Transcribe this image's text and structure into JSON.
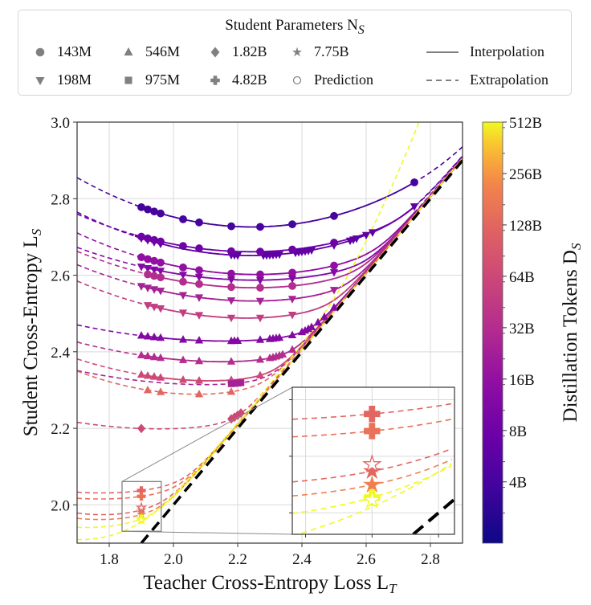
{
  "legend": {
    "title": "Student Parameters N",
    "title_sub": "S",
    "items": [
      {
        "label": "143M",
        "marker": "circle"
      },
      {
        "label": "546M",
        "marker": "triangle-up"
      },
      {
        "label": "1.82B",
        "marker": "diamond"
      },
      {
        "label": "7.75B",
        "marker": "star"
      },
      {
        "label": "Interpolation",
        "marker": "solid-line"
      },
      {
        "label": "198M",
        "marker": "triangle-down"
      },
      {
        "label": "975M",
        "marker": "square"
      },
      {
        "label": "4.82B",
        "marker": "plus"
      },
      {
        "label": "Prediction",
        "marker": "hollow-circle"
      },
      {
        "label": "Extrapolation",
        "marker": "dashed-line"
      }
    ]
  },
  "colors": {
    "legend_marker": "#808080",
    "grid": "#d9d9d9",
    "diagonal": "#000000"
  },
  "chart_data": {
    "type": "line",
    "xlabel": "Teacher Cross-Entropy Loss L",
    "xlabel_sub": "T",
    "ylabel": "Student Cross-Entropy L",
    "ylabel_sub": "S",
    "xlim": [
      1.7,
      2.9
    ],
    "ylim": [
      1.9,
      3.0
    ],
    "xticks": [
      "1.8",
      "2.0",
      "2.2",
      "2.4",
      "2.6",
      "2.8"
    ],
    "xtick_values": [
      1.8,
      2.0,
      2.2,
      2.4,
      2.6,
      2.8
    ],
    "yticks": [
      "2.0",
      "2.2",
      "2.4",
      "2.6",
      "2.8",
      "3.0"
    ],
    "ytick_values": [
      2.0,
      2.2,
      2.4,
      2.6,
      2.8,
      3.0
    ],
    "grid": true,
    "diagonal": "y = x (black dashed)",
    "colorbar": {
      "label": "Distillation Tokens D",
      "label_sub": "S",
      "scale": "log2",
      "colormap": "plasma",
      "range_B": [
        1.75,
        512
      ],
      "ticks": [
        "4B",
        "8B",
        "16B",
        "32B",
        "64B",
        "128B",
        "256B",
        "512B"
      ],
      "tick_values_B": [
        4,
        8,
        16,
        32,
        64,
        128,
        256,
        512
      ]
    },
    "inset": {
      "xlim": [
        1.84,
        1.962
      ],
      "ylim": [
        1.931,
        2.061
      ],
      "grid_x": [
        1.85,
        1.9,
        1.95
      ],
      "grid_y": [
        1.95,
        2.0,
        2.05
      ]
    },
    "series": [
      {
        "student": "143M",
        "tokens_B": 4,
        "fit": {
          "x0": 2.25,
          "ymin": 2.73,
          "curv": 0.43
        },
        "interp": [
          1.88,
          2.75
        ],
        "marker": "circle",
        "x": [
          1.9,
          1.92,
          1.94,
          1.96,
          2.03,
          2.08,
          2.18,
          2.27,
          2.37,
          2.5,
          2.75
        ]
      },
      {
        "student": "198M",
        "tokens_B": 6,
        "fit": {
          "x0": 2.25,
          "ymin": 2.655,
          "curv": 0.38
        },
        "interp": [
          1.88,
          2.75
        ],
        "marker": "triangle-down",
        "x": [
          1.9,
          1.92,
          1.94,
          1.96,
          2.18,
          2.19,
          2.2,
          2.28,
          2.29,
          2.3,
          2.31,
          2.32,
          2.33,
          2.38,
          2.39,
          2.4,
          2.41,
          2.42,
          2.43,
          2.5,
          2.55,
          2.56,
          2.57,
          2.6,
          2.62,
          2.75
        ]
      },
      {
        "student": "143M",
        "tokens_B": 8,
        "fit": {
          "x0": 2.25,
          "ymin": 2.665,
          "curv": 0.33
        },
        "interp": [
          1.88,
          2.75
        ],
        "marker": "circle",
        "x": [
          1.9,
          1.92,
          1.94,
          1.96,
          2.03,
          2.08,
          2.18,
          2.27,
          2.37,
          2.5
        ]
      },
      {
        "student": "143M",
        "tokens_B": 16,
        "fit": {
          "x0": 2.27,
          "ymin": 2.605,
          "curv": 0.34
        },
        "interp": [
          1.9,
          2.75
        ],
        "marker": "circle",
        "x": [
          1.9,
          1.92,
          1.94,
          1.96,
          2.03,
          2.08,
          2.18,
          2.27,
          2.37,
          2.5
        ]
      },
      {
        "student": "198M",
        "tokens_B": 12,
        "fit": {
          "x0": 2.27,
          "ymin": 2.59,
          "curv": 0.27
        },
        "interp": [
          1.9,
          2.75
        ],
        "marker": "triangle-down",
        "x": [
          1.9,
          1.92,
          1.94,
          1.96,
          2.03,
          2.08,
          2.18,
          2.27,
          2.37,
          2.5
        ]
      },
      {
        "student": "143M",
        "tokens_B": 32,
        "fit": {
          "x0": 2.27,
          "ymin": 2.57,
          "curv": 0.3
        },
        "interp": [
          1.92,
          2.75
        ],
        "marker": "circle",
        "x": [
          1.92,
          1.94,
          1.96,
          2.03,
          2.08,
          2.18,
          2.27,
          2.37
        ]
      },
      {
        "student": "198M",
        "tokens_B": 24,
        "fit": {
          "x0": 2.27,
          "ymin": 2.535,
          "curv": 0.3
        },
        "interp": [
          1.9,
          2.75
        ],
        "marker": "triangle-down",
        "x": [
          1.9,
          1.92,
          1.94,
          1.96,
          2.03,
          2.08,
          2.18,
          2.27,
          2.37,
          2.5
        ]
      },
      {
        "student": "198M",
        "tokens_B": 48,
        "fit": {
          "x0": 2.25,
          "ymin": 2.49,
          "curv": 0.33
        },
        "interp": [
          1.92,
          2.75
        ],
        "marker": "triangle-down",
        "x": [
          1.92,
          1.94,
          1.96,
          2.03,
          2.08,
          2.18,
          2.27,
          2.37
        ]
      },
      {
        "student": "546M",
        "tokens_B": 12,
        "fit": {
          "x0": 2.2,
          "ymin": 2.43,
          "curv": 0.18
        },
        "interp": [
          1.9,
          2.75
        ],
        "marker": "triangle-up",
        "x": [
          1.9,
          1.92,
          1.94,
          1.96,
          2.03,
          2.08,
          2.18,
          2.19,
          2.2,
          2.27,
          2.3,
          2.31,
          2.32,
          2.33,
          2.37,
          2.4,
          2.41,
          2.42,
          2.43,
          2.45,
          2.47,
          2.5
        ]
      },
      {
        "student": "546M",
        "tokens_B": 32,
        "fit": {
          "x0": 2.2,
          "ymin": 2.375,
          "curv": 0.22
        },
        "interp": [
          1.9,
          2.75
        ],
        "marker": "triangle-up",
        "x": [
          1.9,
          1.92,
          1.94,
          1.96,
          2.03,
          2.08,
          2.18,
          2.27,
          2.3,
          2.31,
          2.32,
          2.33,
          2.34,
          2.37
        ]
      },
      {
        "student": "546M",
        "tokens_B": 64,
        "fit": {
          "x0": 2.15,
          "ymin": 2.325,
          "curv": 0.3
        },
        "interp": [
          1.9,
          2.75
        ],
        "marker": "triangle-up",
        "x": [
          1.9,
          1.92,
          1.94,
          1.96,
          2.03,
          2.08,
          2.18,
          2.27
        ]
      },
      {
        "student": "975M",
        "tokens_B": 24,
        "fit": {
          "x0": 2.15,
          "ymin": 2.315,
          "curv": 0.2
        },
        "interp": null,
        "marker": "square",
        "x": [
          2.18,
          2.19,
          2.2,
          2.21
        ]
      },
      {
        "student": "546M",
        "tokens_B": 128,
        "fit": {
          "x0": 2.1,
          "ymin": 2.29,
          "curv": 0.4
        },
        "interp": null,
        "marker": "triangle-up",
        "x": [
          1.92,
          1.96,
          2.08,
          2.18
        ]
      },
      {
        "student": "1.82B",
        "tokens_B": 64,
        "fit": {
          "x0": 2.0,
          "ymin": 2.2,
          "curv": 0.22
        },
        "interp": null,
        "marker": "diamond",
        "x": [
          1.9,
          2.18,
          2.19,
          2.2,
          2.21
        ]
      },
      {
        "student": "4.82B",
        "tokens_B": 128,
        "fit": {
          "x0": 1.8,
          "ymin": 2.033,
          "curv": 0.3
        },
        "interp": null,
        "marker": "plus",
        "x": [
          1.9
        ]
      },
      {
        "student": "4.82B",
        "tokens_B": 160,
        "fit": {
          "x0": 1.8,
          "ymin": 2.017,
          "curv": 0.3
        },
        "interp": null,
        "marker": "plus",
        "x": [
          1.9
        ]
      },
      {
        "student": "7.75B",
        "tokens_B": 128,
        "fit": {
          "x0": 1.8,
          "ymin": 1.975,
          "curv": 0.6
        },
        "interp": null,
        "marker": "star",
        "x": [
          1.9
        ],
        "prediction_x": [
          1.9
        ]
      },
      {
        "student": "7.75B",
        "tokens_B": 200,
        "fit": {
          "x0": 1.8,
          "ymin": 1.962,
          "curv": 0.5
        },
        "interp": null,
        "marker": "star",
        "x": [
          1.9
        ]
      },
      {
        "student": "4.82B",
        "tokens_B": 512,
        "fit": {
          "x0": 1.75,
          "ymin": 1.942,
          "curv": 0.5
        },
        "interp": null,
        "marker": "plus",
        "x": [
          1.9
        ]
      },
      {
        "student": "7.75B",
        "tokens_B": 512,
        "fit": {
          "x0": 1.72,
          "ymin": 1.91,
          "curv": 1.0
        },
        "interp": null,
        "marker": "star",
        "prediction_x": [
          1.9
        ]
      }
    ]
  }
}
